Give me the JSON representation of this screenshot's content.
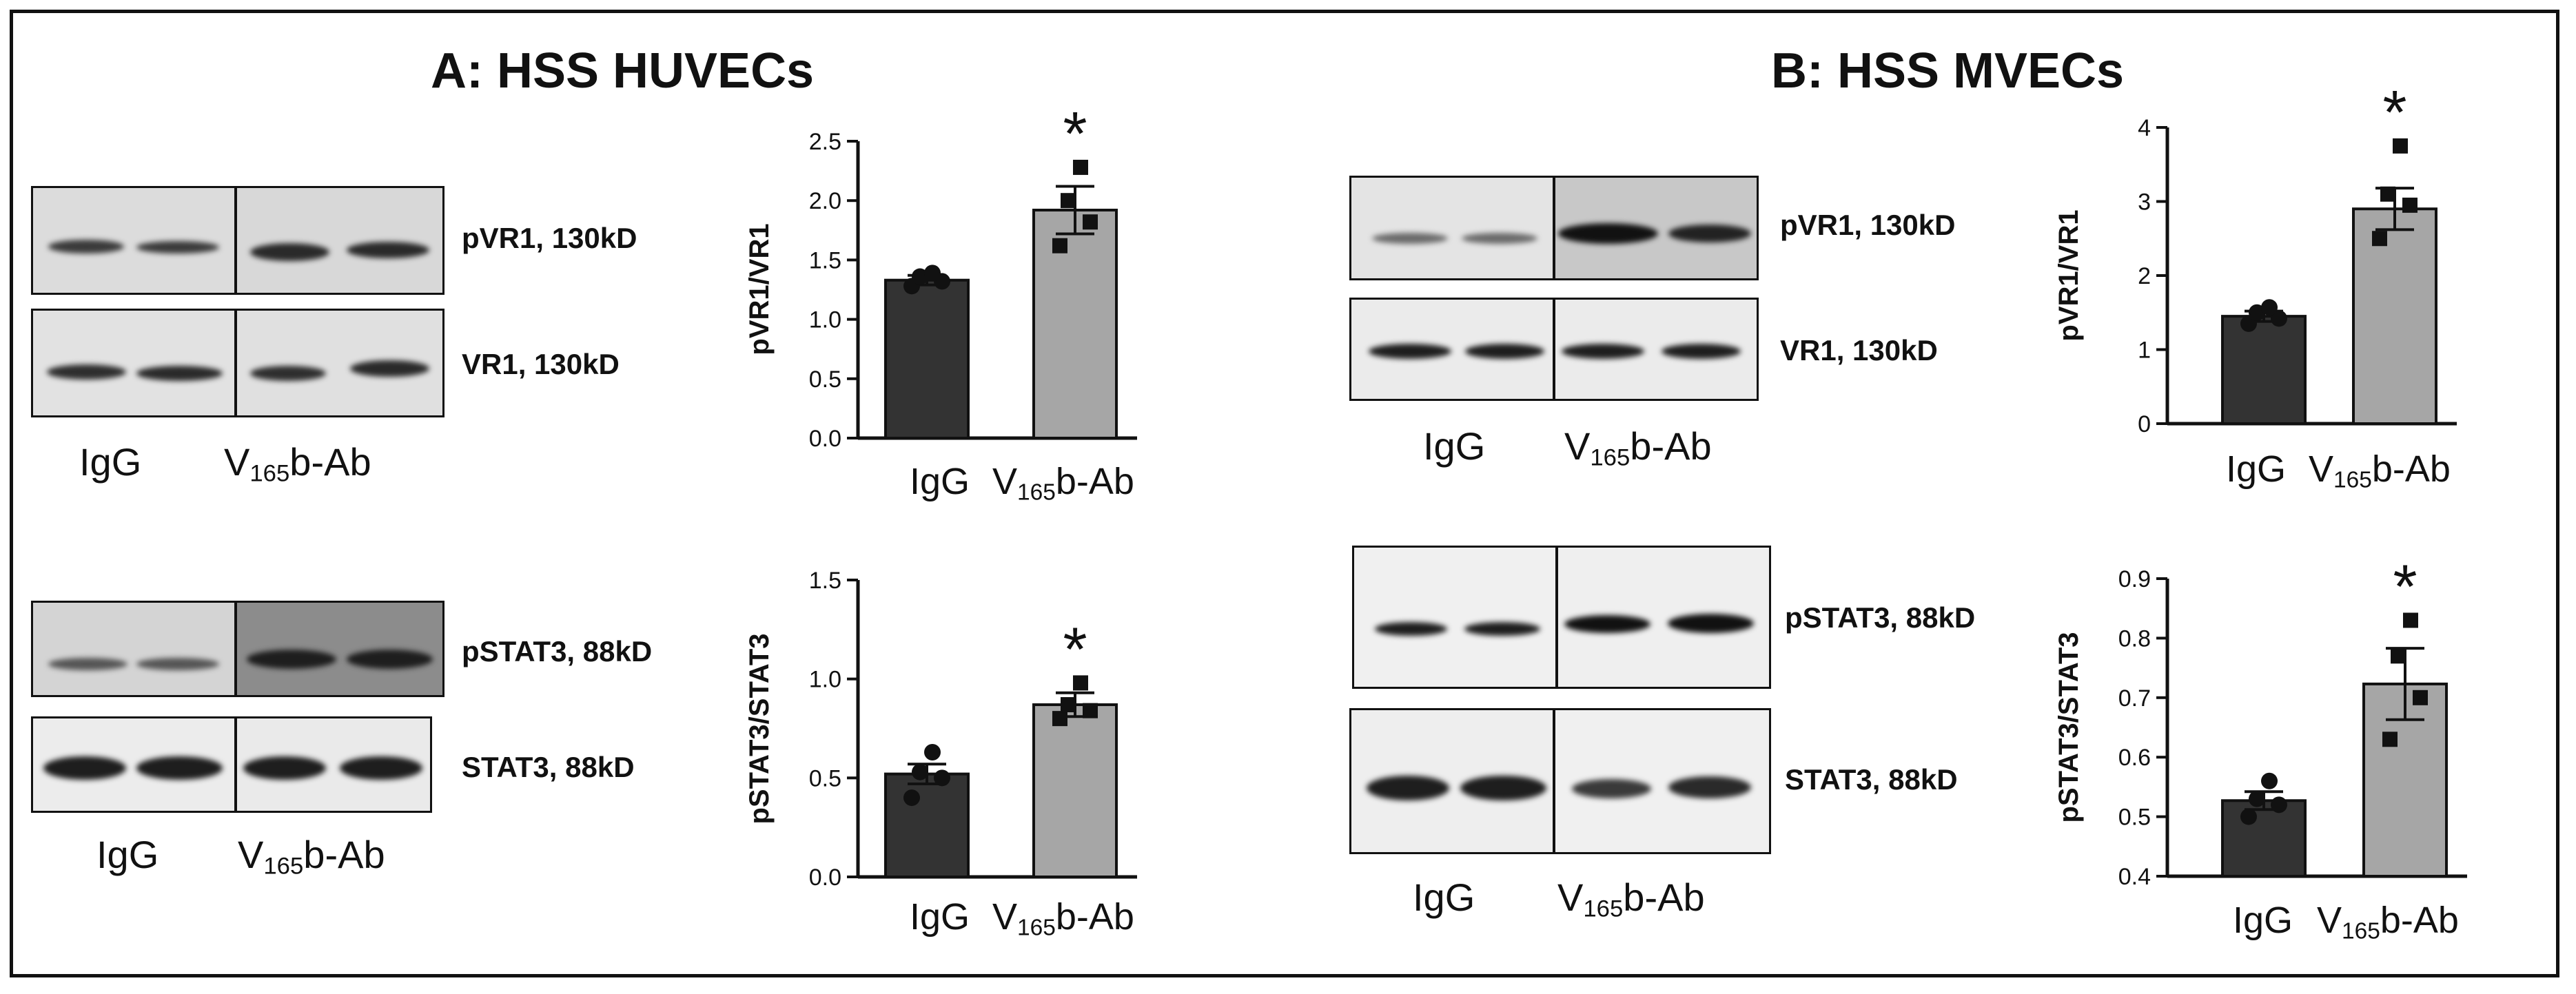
{
  "panels": {
    "a_title": "A: HSS HUVECs",
    "b_title": "B: HSS MVECs"
  },
  "blots": {
    "a_pvr1": "pVR1, 130kD",
    "a_vr1": "VR1, 130kD",
    "a_pstat3": "pSTAT3, 88kD",
    "a_stat3": "STAT3, 88kD",
    "b_pvr1": "pVR1, 130kD",
    "b_vr1": "VR1, 130kD",
    "b_pstat3": "pSTAT3, 88kD",
    "b_stat3": "STAT3, 88kD"
  },
  "lanes": {
    "igg": "IgG",
    "v_prefix": "V",
    "v_sub": "165",
    "v_suffix": "b-Ab"
  },
  "colors": {
    "igg_bar": "#333333",
    "ab_bar": "#a6a6a6",
    "band": "#2a2a2a"
  },
  "chart_data": [
    {
      "id": "a_top",
      "type": "bar",
      "categories": [
        "IgG",
        "V165b-Ab"
      ],
      "values": [
        1.33,
        1.92
      ],
      "errors": [
        0.04,
        0.2
      ],
      "points": [
        [
          1.28,
          1.32,
          1.36,
          1.39
        ],
        [
          1.62,
          1.82,
          2.0,
          2.28
        ]
      ],
      "ylabel": "pVR1/VR1",
      "ylim": [
        0,
        2.5
      ],
      "yticks": [
        0.0,
        0.5,
        1.0,
        1.5,
        2.0,
        2.5
      ],
      "tick_labels": [
        "0.0",
        "0.5",
        "1.0",
        "1.5",
        "2.0",
        "2.5"
      ],
      "significance": "*"
    },
    {
      "id": "a_bottom",
      "type": "bar",
      "categories": [
        "IgG",
        "V165b-Ab"
      ],
      "values": [
        0.52,
        0.87
      ],
      "errors": [
        0.05,
        0.06
      ],
      "points": [
        [
          0.4,
          0.5,
          0.53,
          0.63
        ],
        [
          0.8,
          0.84,
          0.87,
          0.98
        ]
      ],
      "ylabel": "pSTAT3/STAT3",
      "ylim": [
        0,
        1.5
      ],
      "yticks": [
        0.0,
        0.5,
        1.0,
        1.5
      ],
      "tick_labels": [
        "0.0",
        "0.5",
        "1.0",
        "1.5"
      ],
      "significance": "*"
    },
    {
      "id": "b_top",
      "type": "bar",
      "categories": [
        "IgG",
        "V165b-Ab"
      ],
      "values": [
        1.45,
        2.9
      ],
      "errors": [
        0.07,
        0.28
      ],
      "points": [
        [
          1.35,
          1.42,
          1.5,
          1.57
        ],
        [
          2.5,
          2.95,
          3.1,
          3.75
        ]
      ],
      "ylabel": "pVR1/VR1",
      "ylim": [
        0,
        4
      ],
      "yticks": [
        0,
        1,
        2,
        3,
        4
      ],
      "tick_labels": [
        "0",
        "1",
        "2",
        "3",
        "4"
      ],
      "significance": "*"
    },
    {
      "id": "b_bottom",
      "type": "bar",
      "categories": [
        "IgG",
        "V165b-Ab"
      ],
      "values": [
        0.527,
        0.723
      ],
      "errors": [
        0.015,
        0.06
      ],
      "points": [
        [
          0.5,
          0.52,
          0.53,
          0.56
        ],
        [
          0.63,
          0.7,
          0.77,
          0.83
        ]
      ],
      "ylabel": "pSTAT3/STAT3",
      "ylim": [
        0.4,
        0.9
      ],
      "yticks": [
        0.4,
        0.5,
        0.6,
        0.7,
        0.8,
        0.9
      ],
      "tick_labels": [
        "0.4",
        "0.5",
        "0.6",
        "0.7",
        "0.8",
        "0.9"
      ],
      "significance": "*"
    }
  ]
}
